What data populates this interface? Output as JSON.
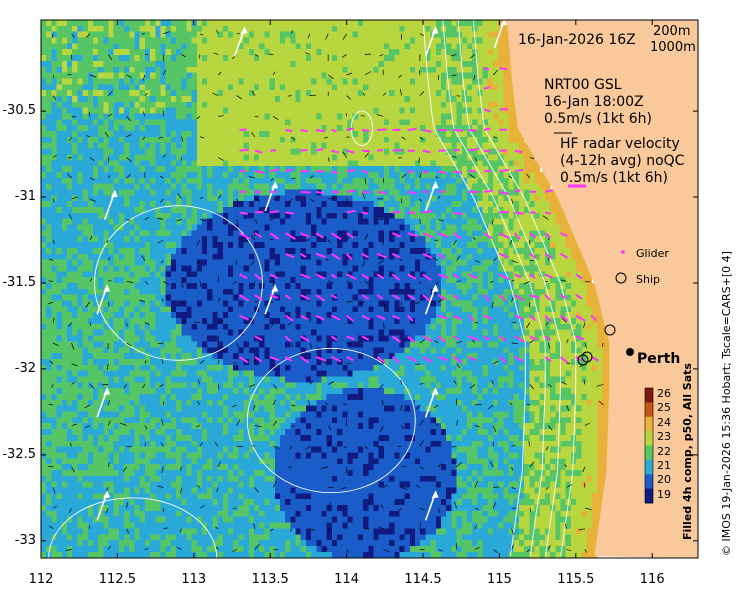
{
  "map": {
    "x_ticks": [
      "112",
      "112.5",
      "113",
      "113.5",
      "114",
      "114.5",
      "115",
      "115.5",
      "116"
    ],
    "y_ticks": [
      "-30.5",
      "-31",
      "-31.5",
      "-32",
      "-32.5",
      "-33"
    ],
    "lon_range": [
      112,
      116.3
    ],
    "lat_range": [
      -33.1,
      -29.97
    ],
    "colors": {
      "land": "#f9c89b",
      "contour": "#ffffff",
      "radar": "#ff33ff"
    }
  },
  "annotations": {
    "date_label": "16-Jan-2026 16Z",
    "depth_200": "200m",
    "depth_1000": "1000m",
    "model_line1": "NRT00 GSL",
    "model_line2": "16-Jan 18:00Z",
    "model_line3": "0.5m/s (1kt 6h)",
    "radar_line1": "HF radar velocity",
    "radar_line2": "(4-12h avg) noQC",
    "radar_line3": "0.5m/s (1kt 6h)",
    "glider_label": "Glider",
    "ship_label": "Ship",
    "city_label": "Perth"
  },
  "colorbar": {
    "ticks": [
      "26",
      "25",
      "24",
      "23",
      "22",
      "21",
      "20",
      "19"
    ],
    "colors": [
      "#7a1a10",
      "#c4561b",
      "#e8b23a",
      "#b8d640",
      "#55c565",
      "#2aa9d8",
      "#1a5cc8",
      "#101a80"
    ],
    "title": "Filled 4h comp, p50, All Sats"
  },
  "credit": "© IMOS 19-Jan-2026 15:36 Hobart; Tscale=CARS+[0 4]"
}
